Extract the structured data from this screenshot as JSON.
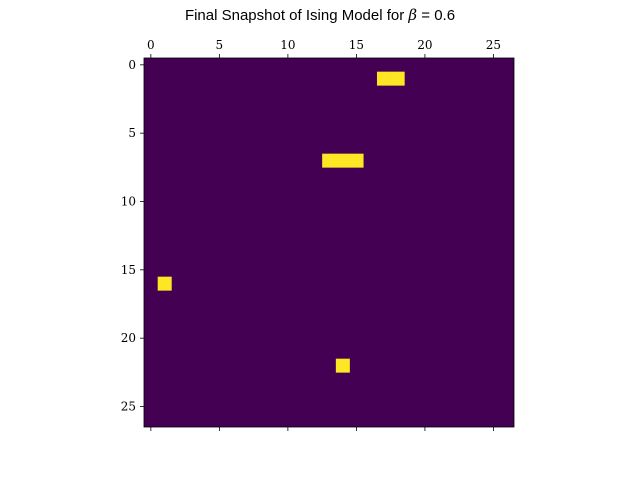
{
  "colors": {
    "background": "#440154",
    "spin_up": "#fde725",
    "spin_down": "#440154",
    "axes": "#000000"
  },
  "chart_data": {
    "type": "heatmap",
    "title_prefix": "Final Snapshot of Ising Model for ",
    "title_symbol": "β",
    "title_equals": " = ",
    "title_value": "0.6",
    "title": "Final Snapshot of Ising Model for β = 0.6",
    "xlabel": "",
    "ylabel": "",
    "grid_size": [
      27,
      27
    ],
    "xlim": [
      -0.5,
      26.5
    ],
    "ylim": [
      26.5,
      -0.5
    ],
    "x_axis_position": "top",
    "x_ticks": [
      0,
      5,
      10,
      15,
      20,
      25
    ],
    "y_ticks": [
      0,
      5,
      10,
      15,
      20,
      25
    ],
    "x_tick_labels": [
      "0",
      "5",
      "10",
      "15",
      "20",
      "25"
    ],
    "y_tick_labels": [
      "0",
      "5",
      "10",
      "15",
      "20",
      "25"
    ],
    "grid": false,
    "colormap": "viridis",
    "default_value": 0,
    "value_range": [
      0,
      1
    ],
    "cells_value_1": [
      {
        "row": 1,
        "col": 17
      },
      {
        "row": 1,
        "col": 18
      },
      {
        "row": 7,
        "col": 13
      },
      {
        "row": 7,
        "col": 14
      },
      {
        "row": 7,
        "col": 15
      },
      {
        "row": 16,
        "col": 1
      },
      {
        "row": 22,
        "col": 14
      }
    ]
  }
}
